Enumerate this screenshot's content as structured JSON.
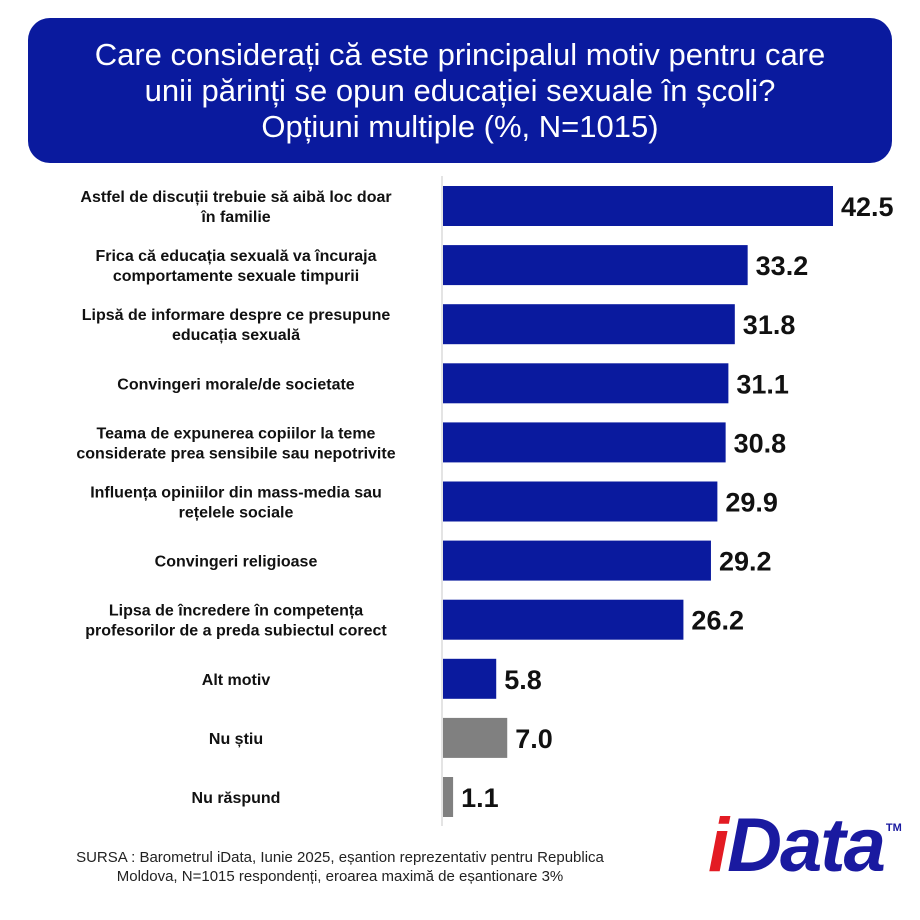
{
  "header": {
    "title_lines": [
      "Care considerați că este principalul motiv pentru care",
      "unii părinți se opun educației sexuale în școli?",
      "Opțiuni multiple (%, N=1015)"
    ],
    "background_color": "#0a1a9e"
  },
  "chart_data": {
    "type": "bar",
    "orientation": "horizontal",
    "title": "Care considerați că este principalul motiv pentru care unii părinți se opun educației sexuale în școli? Opțiuni multiple (%, N=1015)",
    "xlabel": "",
    "ylabel": "",
    "xlim": [
      0,
      42.5
    ],
    "grid": false,
    "categories": [
      [
        "Astfel de discuții trebuie să aibă loc doar",
        "în familie"
      ],
      [
        "Frica că educația sexuală va încuraja",
        "comportamente sexuale timpurii"
      ],
      [
        "Lipsă de informare despre ce presupune",
        "educația sexuală"
      ],
      [
        "Convingeri morale/de societate"
      ],
      [
        "Teama de expunerea copiilor la teme",
        "considerate prea sensibile sau nepotrivite"
      ],
      [
        "Influența opiniilor din mass-media sau",
        "rețelele sociale"
      ],
      [
        "Convingeri religioase"
      ],
      [
        "Lipsa de încredere în competența",
        "profesorilor de a preda subiectul corect"
      ],
      [
        "Alt motiv"
      ],
      [
        "Nu știu"
      ],
      [
        "Nu răspund"
      ]
    ],
    "values": [
      42.5,
      33.2,
      31.8,
      31.1,
      30.8,
      29.9,
      29.2,
      26.2,
      5.8,
      7.0,
      1.1
    ],
    "value_labels": [
      "42.5",
      "33.2",
      "31.8",
      "31.1",
      "30.8",
      "29.9",
      "29.2",
      "26.2",
      "5.8",
      "7.0",
      "1.1"
    ],
    "colors": [
      "#0a1a9e",
      "#0a1a9e",
      "#0a1a9e",
      "#0a1a9e",
      "#0a1a9e",
      "#0a1a9e",
      "#0a1a9e",
      "#0a1a9e",
      "#0a1a9e",
      "#808080",
      "#808080"
    ]
  },
  "source": {
    "lines": [
      "SURSA : Barometrul iData, Iunie 2025, eșantion reprezentativ pentru Republica",
      "Moldova, N=1015 respondenți, eroarea maximă de eșantionare 3%"
    ]
  },
  "logo": {
    "first_letter": "i",
    "rest": "Data",
    "trademark": "TM"
  }
}
